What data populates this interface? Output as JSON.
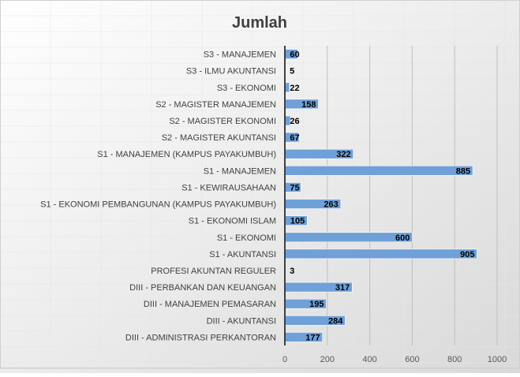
{
  "chart_data": {
    "type": "bar",
    "orientation": "horizontal",
    "title": "Jumlah",
    "xlabel": "",
    "ylabel": "",
    "xlim": [
      0,
      1000
    ],
    "xticks": [
      0,
      200,
      400,
      600,
      800,
      1000
    ],
    "grid": true,
    "legend": "none",
    "categories": [
      "S3 - MANAJEMEN",
      "S3 - ILMU AKUNTANSI",
      "S3 - EKONOMI",
      "S2 - MAGISTER MANAJEMEN",
      "S2 - MAGISTER EKONOMI",
      "S2 - MAGISTER AKUNTANSI",
      "S1 - MANAJEMEN (KAMPUS PAYAKUMBUH)",
      "S1 - MANAJEMEN",
      "S1 - KEWIRAUSAHAAN",
      "S1 - EKONOMI PEMBANGUNAN (KAMPUS PAYAKUMBUH)",
      "S1 - EKONOMI ISLAM",
      "S1 - EKONOMI",
      "S1 - AKUNTANSI",
      "PROFESI AKUNTAN REGULER",
      "DIII - PERBANKAN DAN KEUANGAN",
      "DIII - MANAJEMEN PEMASARAN",
      "DIII - AKUNTANSI",
      "DIII - ADMINISTRASI PERKANTORAN"
    ],
    "series": [
      {
        "name": "Jumlah",
        "color": "#6fa0d8",
        "values": [
          60,
          5,
          22,
          158,
          26,
          67,
          322,
          885,
          75,
          263,
          105,
          600,
          905,
          3,
          317,
          195,
          284,
          177
        ]
      }
    ]
  }
}
